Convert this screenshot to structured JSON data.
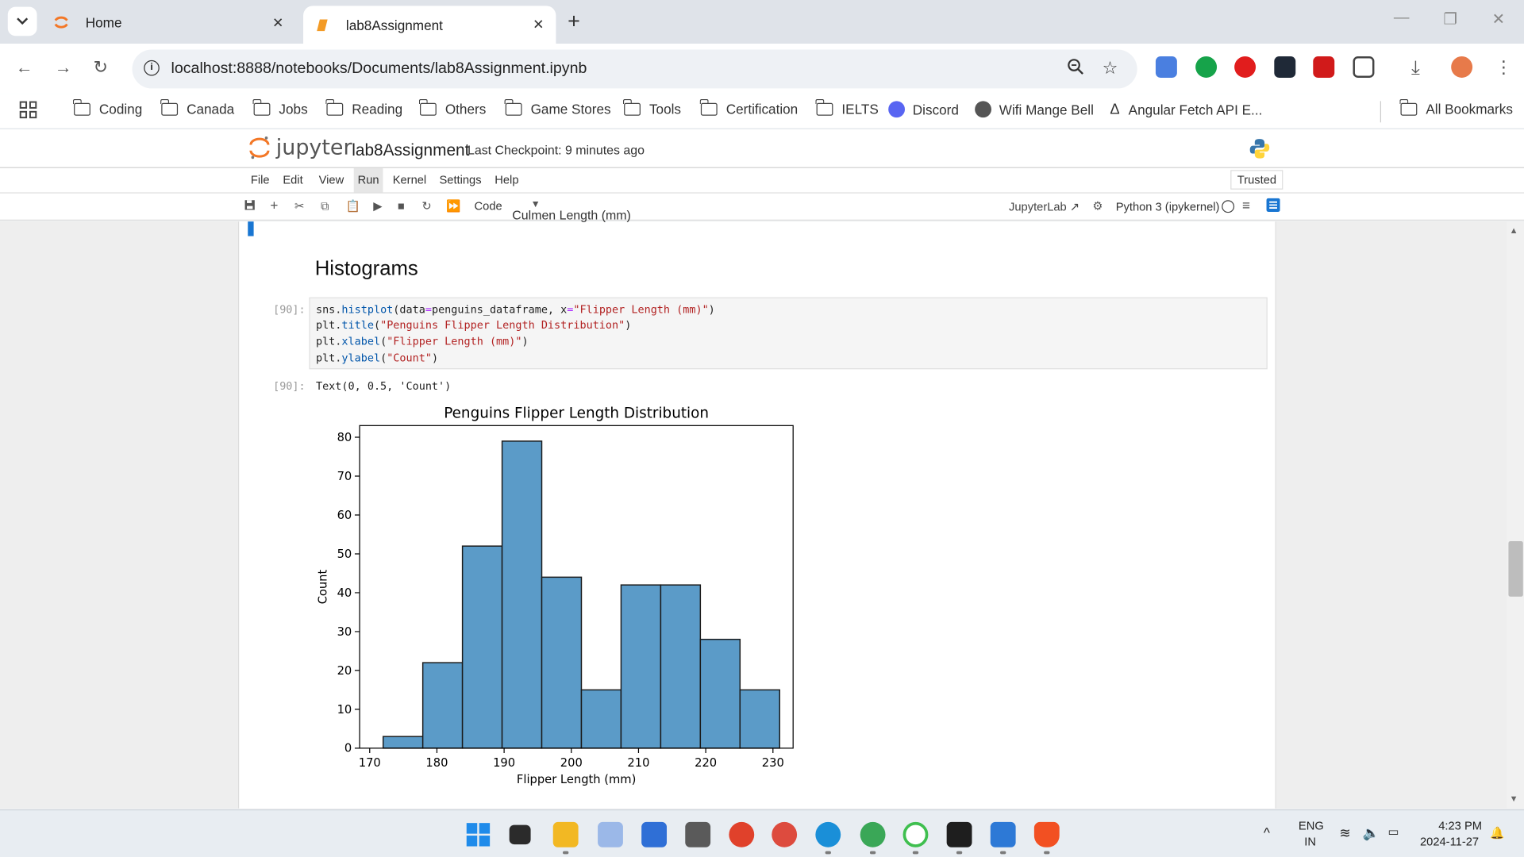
{
  "browser": {
    "tabs": [
      {
        "title": "Home",
        "active": false
      },
      {
        "title": "lab8Assignment",
        "active": true
      }
    ],
    "url": "localhost:8888/notebooks/Documents/lab8Assignment.ipynb",
    "bookmarks": [
      "Coding",
      "Canada",
      "Jobs",
      "Reading",
      "Others",
      "Game Stores",
      "Tools",
      "Certification",
      "IELTS",
      "Discord",
      "Wifi Mange Bell",
      "Angular Fetch API E..."
    ],
    "all_bookmarks": "All Bookmarks"
  },
  "jupyter": {
    "logo_text": "jupyter",
    "notebook_name": "lab8Assignment",
    "checkpoint": "Last Checkpoint: 9 minutes ago",
    "menu": [
      "File",
      "Edit",
      "View",
      "Run",
      "Kernel",
      "Settings",
      "Help"
    ],
    "active_menu": "Run",
    "trusted": "Trusted",
    "cell_type": "Code",
    "jupyterlab_link": "JupyterLab",
    "kernel": "Python 3 (ipykernel)"
  },
  "notebook": {
    "cutoff_text": "Culmen Length (mm)",
    "heading": "Histograms",
    "input_prompt": "[90]:",
    "output_prompt": "[90]:",
    "code": [
      {
        "pre": "sns.",
        "fn": "histplot",
        "mid": "(data",
        "eq": "=",
        "mid2": "penguins_dataframe, x",
        "eq2": "=",
        "str": "\"Flipper Length (mm)\"",
        "post": ")"
      },
      {
        "pre": "plt.",
        "fn": "title",
        "mid": "(",
        "str": "\"Penguins Flipper Length Distribution\"",
        "post": ")"
      },
      {
        "pre": "plt.",
        "fn": "xlabel",
        "mid": "(",
        "str": "\"Flipper Length (mm)\"",
        "post": ")"
      },
      {
        "pre": "plt.",
        "fn": "ylabel",
        "mid": "(",
        "str": "\"Count\"",
        "post": ")"
      }
    ],
    "output_text": "Text(0, 0.5, 'Count')"
  },
  "chart_data": {
    "type": "bar",
    "title": "Penguins Flipper Length Distribution",
    "xlabel": "Flipper Length (mm)",
    "ylabel": "Count",
    "bin_edges": [
      172,
      177.9,
      183.8,
      189.7,
      195.6,
      201.5,
      207.4,
      213.3,
      219.2,
      225.1,
      231
    ],
    "values": [
      3,
      22,
      52,
      79,
      44,
      15,
      42,
      42,
      28,
      15
    ],
    "xlim": [
      168.5,
      233
    ],
    "ylim": [
      0,
      83
    ],
    "xticks": [
      170,
      180,
      190,
      200,
      210,
      220,
      230
    ],
    "yticks": [
      0,
      10,
      20,
      30,
      40,
      50,
      60,
      70,
      80
    ],
    "bar_color": "#5b9bc8",
    "grid": false
  },
  "taskbar": {
    "lang": "ENG",
    "region": "IN",
    "time": "4:23 PM",
    "date": "2024-11-27"
  }
}
